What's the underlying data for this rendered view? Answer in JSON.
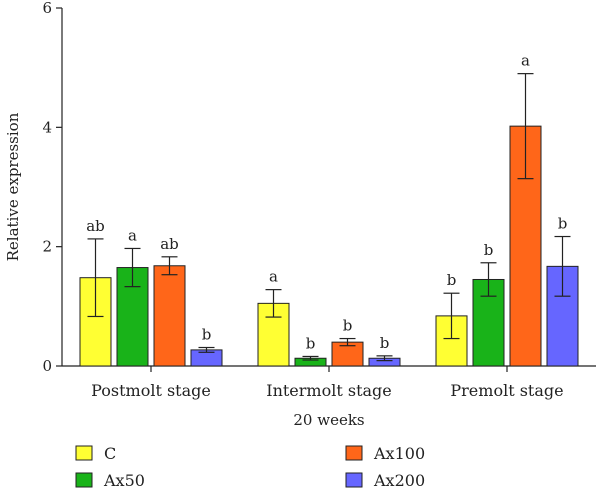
{
  "chart_data": {
    "type": "bar",
    "title": "",
    "xlabel": "20 weeks",
    "ylabel": "Relative expression",
    "ylim": [
      0,
      6
    ],
    "yticks": [
      "0",
      "2",
      "4",
      "6"
    ],
    "categories": [
      "Postmolt stage",
      "Intermolt stage",
      "Premolt stage"
    ],
    "series": [
      {
        "name": "C",
        "color": "#FFFF33",
        "values": [
          1.48,
          1.05,
          0.84
        ],
        "errors": [
          0.65,
          0.23,
          0.38
        ],
        "labels": [
          "ab",
          "a",
          "b"
        ]
      },
      {
        "name": "Ax50",
        "color": "#19B319",
        "values": [
          1.65,
          0.13,
          1.45
        ],
        "errors": [
          0.32,
          0.03,
          0.28
        ],
        "labels": [
          "a",
          "b",
          "b"
        ]
      },
      {
        "name": "Ax100",
        "color": "#FF6619",
        "values": [
          1.68,
          0.4,
          4.02
        ],
        "errors": [
          0.15,
          0.06,
          0.88
        ],
        "labels": [
          "ab",
          "b",
          "a"
        ]
      },
      {
        "name": "Ax200",
        "color": "#6666FF",
        "values": [
          0.27,
          0.13,
          1.67
        ],
        "errors": [
          0.04,
          0.04,
          0.5
        ],
        "labels": [
          "b",
          "b",
          "b"
        ]
      }
    ],
    "legend_position": "bottom",
    "grid": false
  }
}
